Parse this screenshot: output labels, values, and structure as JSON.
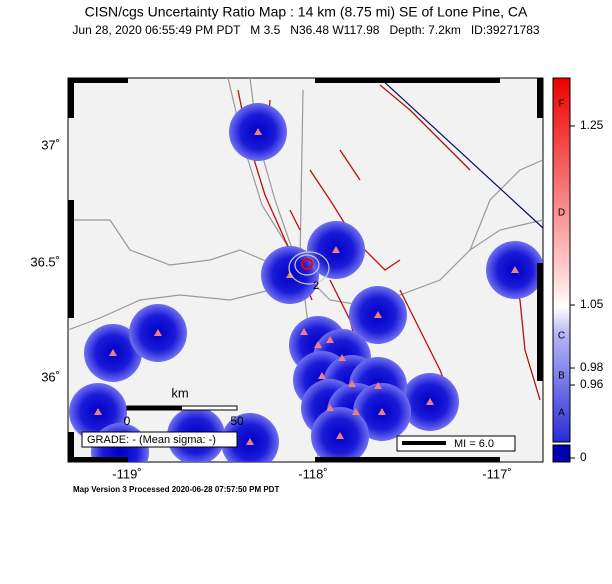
{
  "header": {
    "title": "CISN/cgs Uncertainty Ratio Map : 14 km (8.75 mi) SE of Lone Pine, CA",
    "subtitle": "Jun 28, 2020 06:55:49 PM PDT   M 3.5   N36.48 W117.98   Depth: 7.2km   ID:39271783"
  },
  "map": {
    "lat_labels": [
      "37˚",
      "36.5˚",
      "36˚"
    ],
    "lon_labels": [
      "-119˚",
      "-118˚",
      "-117˚"
    ],
    "contour_label": "2",
    "scale_bar": {
      "unit": "km",
      "start": "0",
      "end": "50"
    },
    "grade": "GRADE: - (Mean sigma: -)",
    "legend": "MI = 6.0"
  },
  "colorbar": {
    "ticks": [
      "1.25",
      "1.05",
      "0.98",
      "0.96",
      "0"
    ],
    "grades": [
      "F",
      "D",
      "C",
      "B",
      "A"
    ]
  },
  "footer": "Map Version 3 Processed 2020-06-28 07:57:50 PM PDT"
}
